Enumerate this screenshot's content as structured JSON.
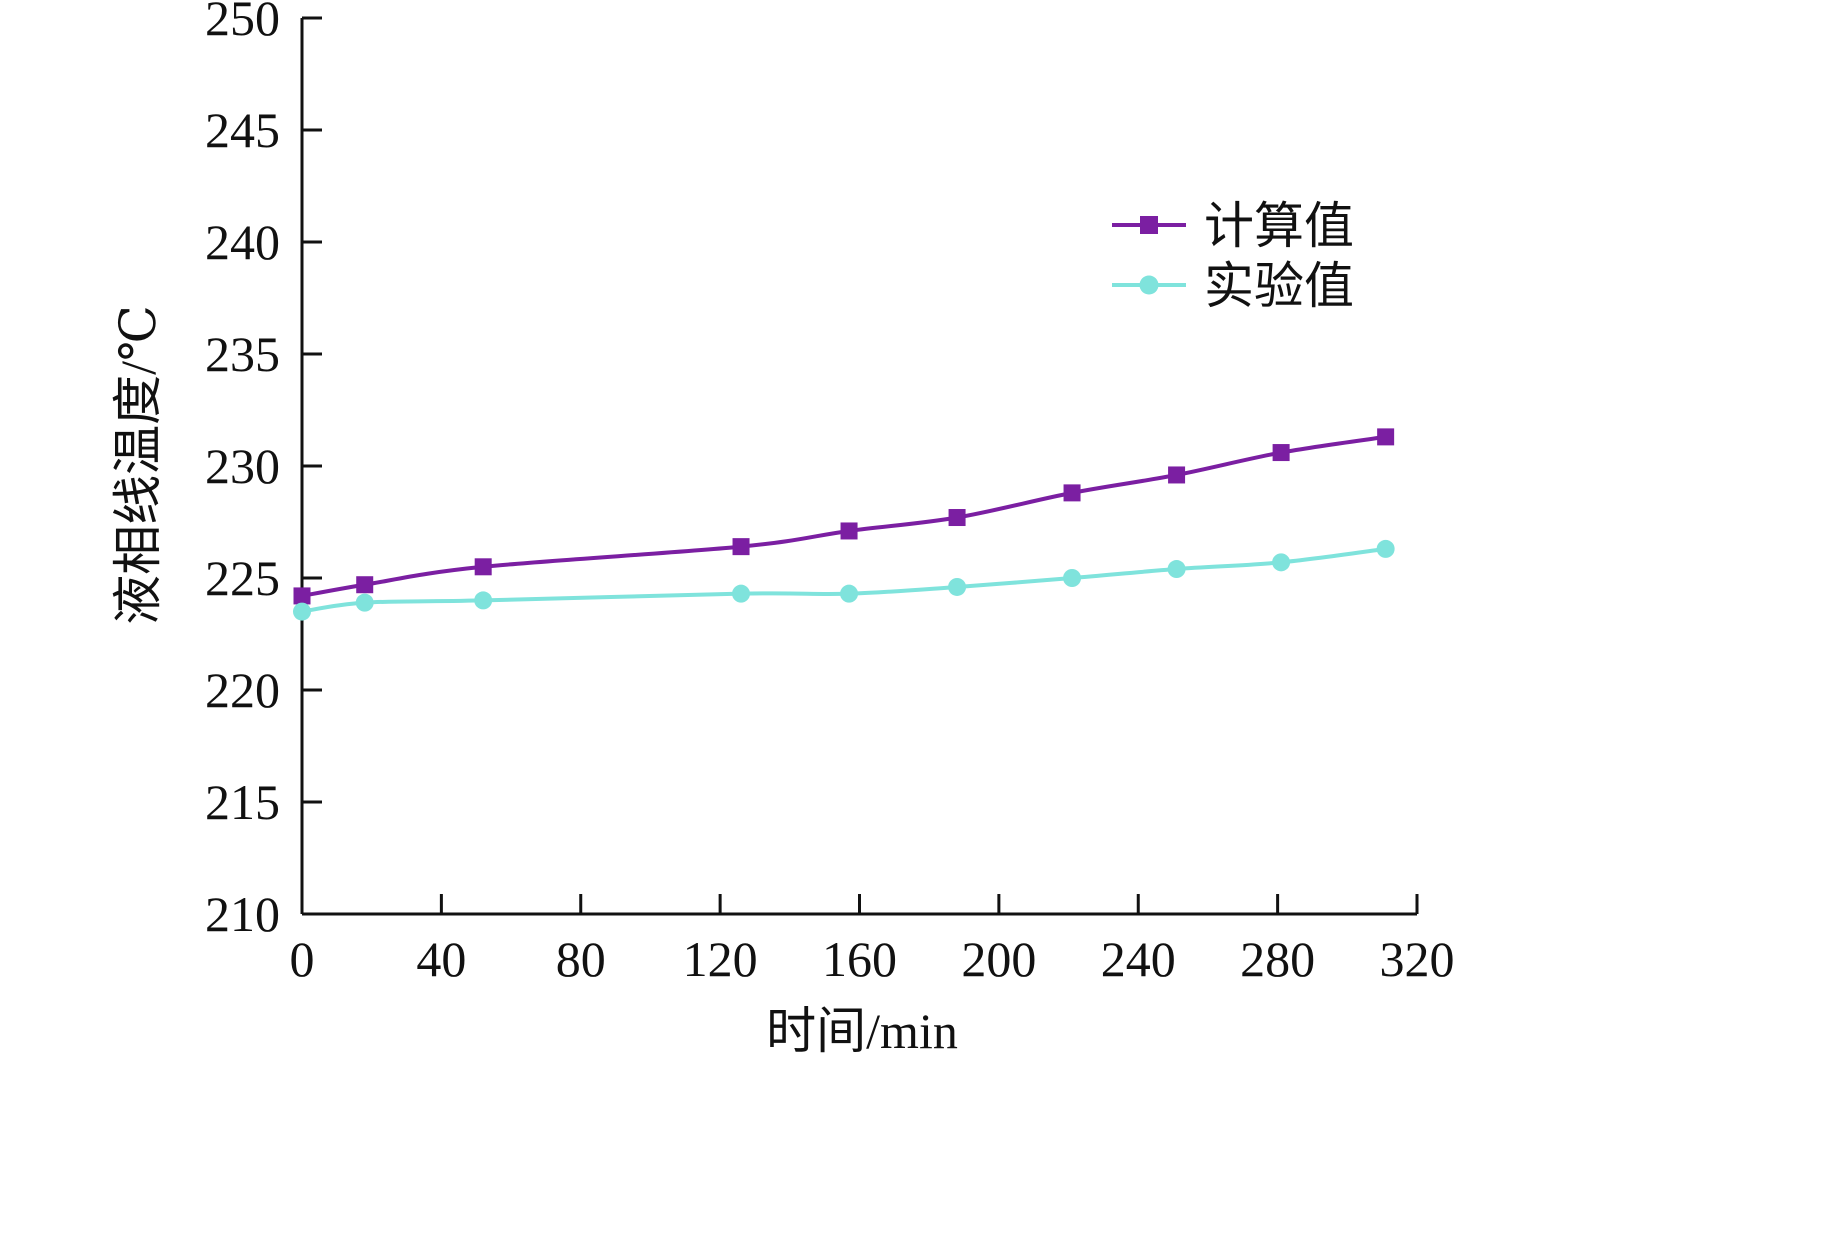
{
  "chart_data": {
    "type": "line",
    "xlabel": "时间/min",
    "ylabel": "液相线温度/℃",
    "xlim": [
      0,
      320
    ],
    "ylim": [
      210,
      250
    ],
    "xticks": [
      0,
      40,
      80,
      120,
      160,
      200,
      240,
      280,
      320
    ],
    "yticks": [
      210,
      215,
      220,
      225,
      230,
      235,
      240,
      245,
      250
    ],
    "xtick_labels": [
      "0",
      "40",
      "80",
      "120",
      "160",
      "200",
      "240",
      "280",
      "320"
    ],
    "ytick_labels": [
      "210",
      "215",
      "220",
      "225",
      "230",
      "235",
      "240",
      "245",
      "250"
    ],
    "grid": false,
    "legend_position": "upper-right",
    "series": [
      {
        "name": "计算值",
        "color": "#7b1fa2",
        "marker": "square",
        "x": [
          0,
          18,
          52,
          126,
          157,
          188,
          221,
          251,
          281,
          311
        ],
        "y": [
          224.2,
          224.7,
          225.5,
          226.4,
          227.1,
          227.7,
          228.8,
          229.6,
          230.6,
          231.3
        ]
      },
      {
        "name": "实验值",
        "color": "#7fe3dc",
        "marker": "circle",
        "x": [
          0,
          18,
          52,
          126,
          157,
          188,
          221,
          251,
          281,
          311
        ],
        "y": [
          223.5,
          223.9,
          224.0,
          224.3,
          224.3,
          224.6,
          225.0,
          225.4,
          225.7,
          226.3
        ]
      }
    ]
  }
}
